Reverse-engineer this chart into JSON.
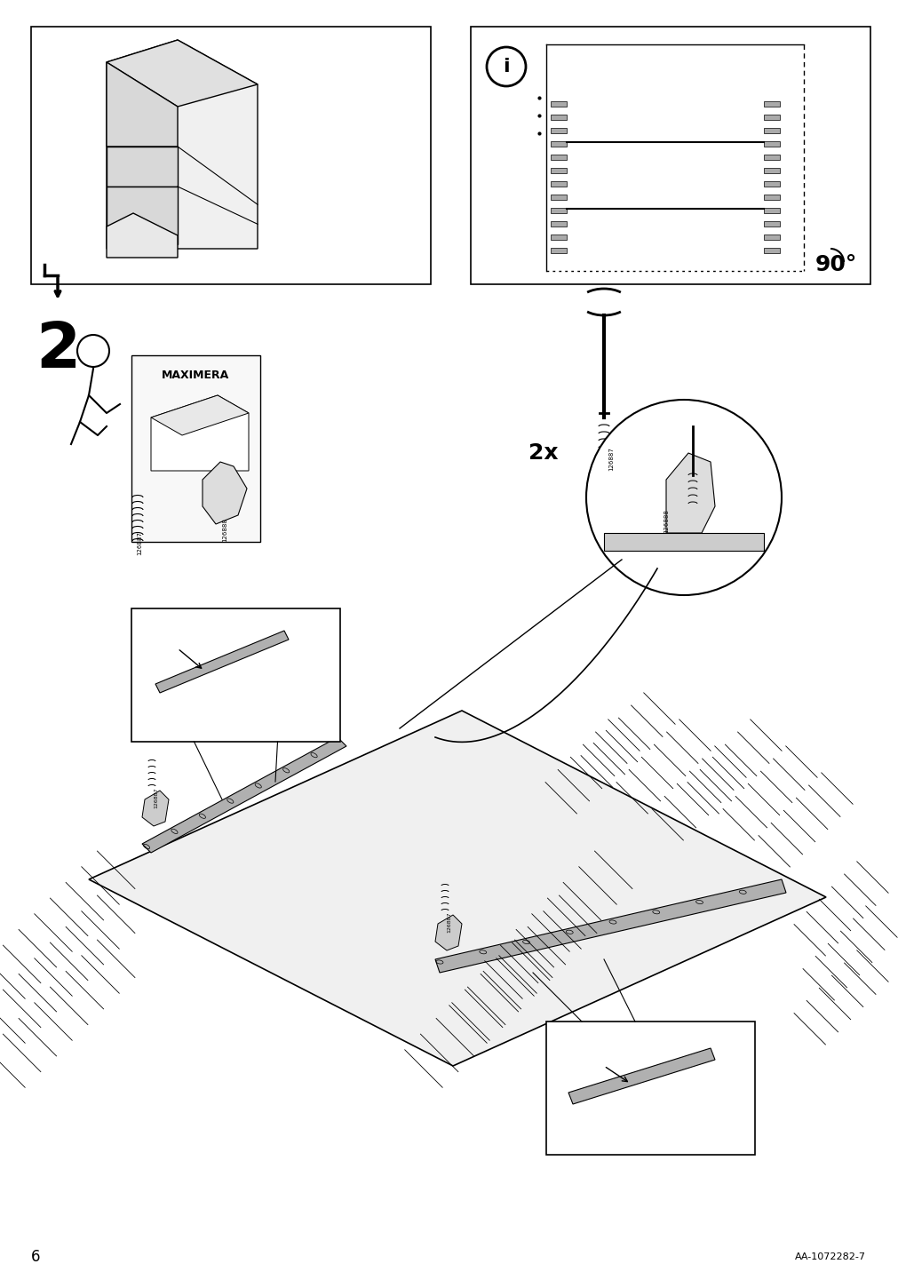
{
  "page_number": "6",
  "doc_number": "AA-1072282-7",
  "background_color": "#ffffff",
  "line_color": "#000000",
  "step_number": "2",
  "title_text": "MAXIMERA",
  "part_numbers": [
    "126887",
    "126888"
  ],
  "angle_text": "90°",
  "multiplier_text": "2x",
  "fig_width": 10.12,
  "fig_height": 14.32
}
